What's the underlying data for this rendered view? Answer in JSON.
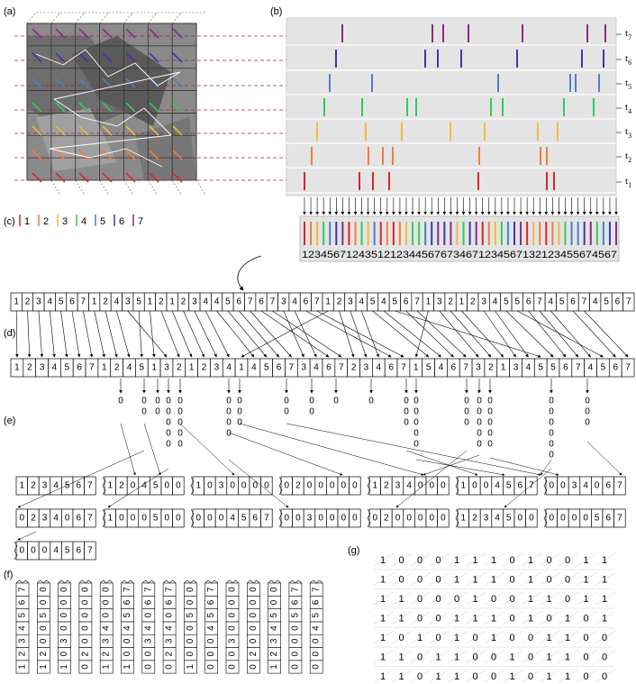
{
  "panel_labels": [
    "(a)",
    "(b)",
    "(c)",
    "(d)",
    "(e)",
    "(f)",
    "(g)"
  ],
  "colors": [
    "#d62728",
    "#f07d3c",
    "#f0b93c",
    "#2ecc5a",
    "#4a7fd0",
    "#3a3aa8",
    "#8a2a8a"
  ],
  "legend": [
    "1",
    "2",
    "3",
    "4",
    "5",
    "6",
    "7"
  ],
  "t_labels": [
    {
      "base": "t",
      "sub": "7"
    },
    {
      "base": "t",
      "sub": "6"
    },
    {
      "base": "t",
      "sub": "5"
    },
    {
      "base": "t",
      "sub": "4"
    },
    {
      "base": "t",
      "sub": "3"
    },
    {
      "base": "t",
      "sub": "2"
    },
    {
      "base": "t",
      "sub": "1"
    }
  ],
  "b_sequence": "12345671243512123445676734671234567132123455674567",
  "d_top": "12345671243512123445676734671234545671321234556745674567",
  "d_bottom": "12345671245132123414567346723467154673213455674567",
  "e_row1": [
    "1234567",
    "1204500",
    "1030000",
    "0200000",
    "1234000",
    "1004567",
    "0034067"
  ],
  "e_row2": [
    "0234067",
    "1000500",
    "0004567",
    "0030000",
    "0200000",
    "1234500",
    "0000567"
  ],
  "e_row3": [
    "0004567"
  ],
  "f_columns": [
    "1234567",
    "1200500",
    "1030000",
    "0200000",
    "1234000",
    "1004567",
    "0034067",
    "0234067",
    "1000500",
    "0004567",
    "0030000",
    "0200000",
    "1234500",
    "0000567",
    "0004567"
  ],
  "g_rows": [
    "1000111010011",
    "1000111010011",
    "1100010011011",
    "1100111010101",
    "1010101001100",
    "1101100101100",
    "1101100101100"
  ]
}
